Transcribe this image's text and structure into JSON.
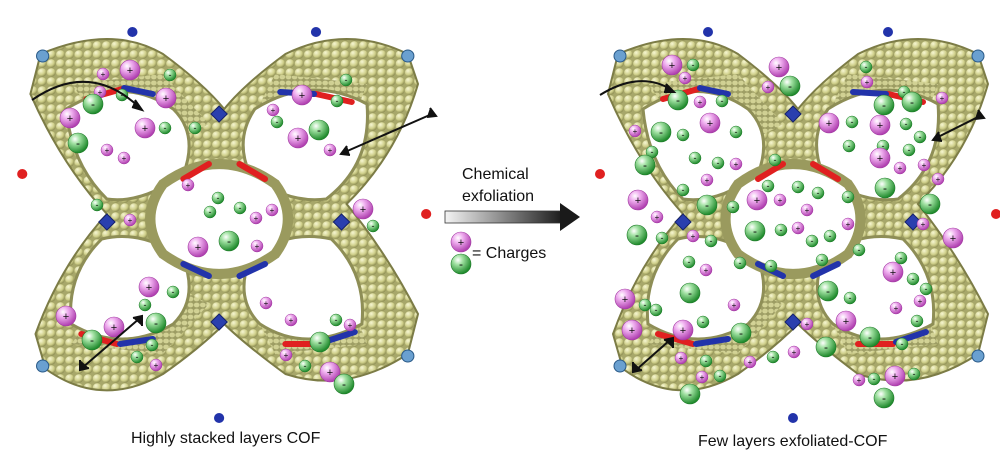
{
  "captions": {
    "left": "Highly stacked layers COF",
    "right": "Few layers exfoliated-COF"
  },
  "process": {
    "line1": "Chemical",
    "line2": "exfoliation"
  },
  "legend": {
    "text": "= Charges"
  },
  "colors": {
    "framework": "#cfcf8a",
    "framework_dark": "#8d8d55",
    "nitrogen": "#2233aa",
    "oxygen": "#e02020",
    "positive_charge": "#d873d8",
    "negative_charge": "#3fb34f",
    "arrow_gradient_start": "#f2f2f2",
    "arrow_gradient_end": "#222222"
  }
}
